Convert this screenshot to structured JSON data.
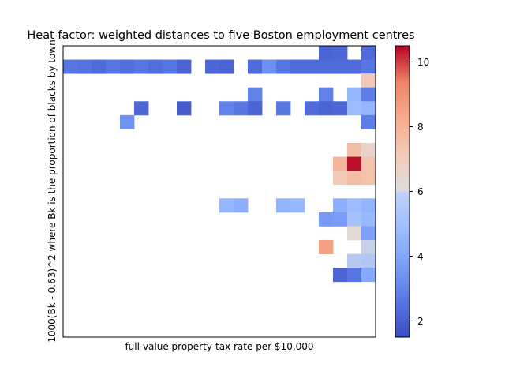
{
  "chart_data": {
    "type": "heatmap",
    "title": "Heat factor: weighted distances to five Boston employment centres",
    "xlabel": "full-value property-tax rate per $10,000",
    "ylabel": "1000(Bk - 0.63)^2 where Bk is the proportion of blacks by town",
    "colormap": "coolwarm",
    "vmin": 1.5,
    "vmax": 10.5,
    "colorbar_ticks": [
      2,
      4,
      6,
      8,
      10
    ],
    "n_cols": 22,
    "n_rows": 21,
    "cells": [
      [
        18,
        0,
        2.1
      ],
      [
        19,
        0,
        2.2
      ],
      [
        21,
        0,
        2.3
      ],
      [
        0,
        1,
        2.6
      ],
      [
        1,
        1,
        2.5
      ],
      [
        2,
        1,
        2.3
      ],
      [
        3,
        1,
        2.6
      ],
      [
        4,
        1,
        2.4
      ],
      [
        5,
        1,
        2.6
      ],
      [
        6,
        1,
        2.4
      ],
      [
        7,
        1,
        2.6
      ],
      [
        8,
        1,
        2.1
      ],
      [
        10,
        1,
        2.2
      ],
      [
        11,
        1,
        2.1
      ],
      [
        13,
        1,
        2.3
      ],
      [
        14,
        1,
        3.3
      ],
      [
        15,
        1,
        2.6
      ],
      [
        16,
        1,
        2.3
      ],
      [
        17,
        1,
        2.3
      ],
      [
        18,
        1,
        2.3
      ],
      [
        19,
        1,
        2.3
      ],
      [
        20,
        1,
        2.3
      ],
      [
        21,
        1,
        2.6
      ],
      [
        21,
        2,
        7.2
      ],
      [
        13,
        3,
        2.9
      ],
      [
        18,
        3,
        2.9
      ],
      [
        20,
        3,
        4.6
      ],
      [
        21,
        3,
        2.8
      ],
      [
        5,
        4,
        2.2
      ],
      [
        8,
        4,
        1.9
      ],
      [
        11,
        4,
        2.9
      ],
      [
        12,
        4,
        2.6
      ],
      [
        13,
        4,
        2.1
      ],
      [
        15,
        4,
        2.6
      ],
      [
        17,
        4,
        2.3
      ],
      [
        18,
        4,
        2.1
      ],
      [
        19,
        4,
        2.2
      ],
      [
        20,
        4,
        4.8
      ],
      [
        21,
        4,
        4.6
      ],
      [
        4,
        5,
        3.4
      ],
      [
        21,
        5,
        2.8
      ],
      [
        20,
        7,
        7.6
      ],
      [
        21,
        7,
        6.6
      ],
      [
        19,
        8,
        7.9
      ],
      [
        20,
        8,
        10.4
      ],
      [
        21,
        8,
        7.4
      ],
      [
        19,
        9,
        7.1
      ],
      [
        20,
        9,
        7.6
      ],
      [
        21,
        9,
        7.5
      ],
      [
        11,
        11,
        4.6
      ],
      [
        12,
        11,
        4.3
      ],
      [
        15,
        11,
        4.5
      ],
      [
        16,
        11,
        4.7
      ],
      [
        19,
        11,
        4.3
      ],
      [
        20,
        11,
        4.8
      ],
      [
        21,
        11,
        4.5
      ],
      [
        18,
        12,
        3.6
      ],
      [
        19,
        12,
        3.7
      ],
      [
        20,
        12,
        5.0
      ],
      [
        21,
        12,
        4.7
      ],
      [
        20,
        13,
        6.2
      ],
      [
        21,
        13,
        3.8
      ],
      [
        18,
        14,
        8.6
      ],
      [
        21,
        14,
        5.6
      ],
      [
        20,
        15,
        5.3
      ],
      [
        21,
        15,
        5.2
      ],
      [
        19,
        16,
        2.1
      ],
      [
        20,
        16,
        2.6
      ],
      [
        21,
        16,
        4.1
      ]
    ],
    "grid": false
  }
}
